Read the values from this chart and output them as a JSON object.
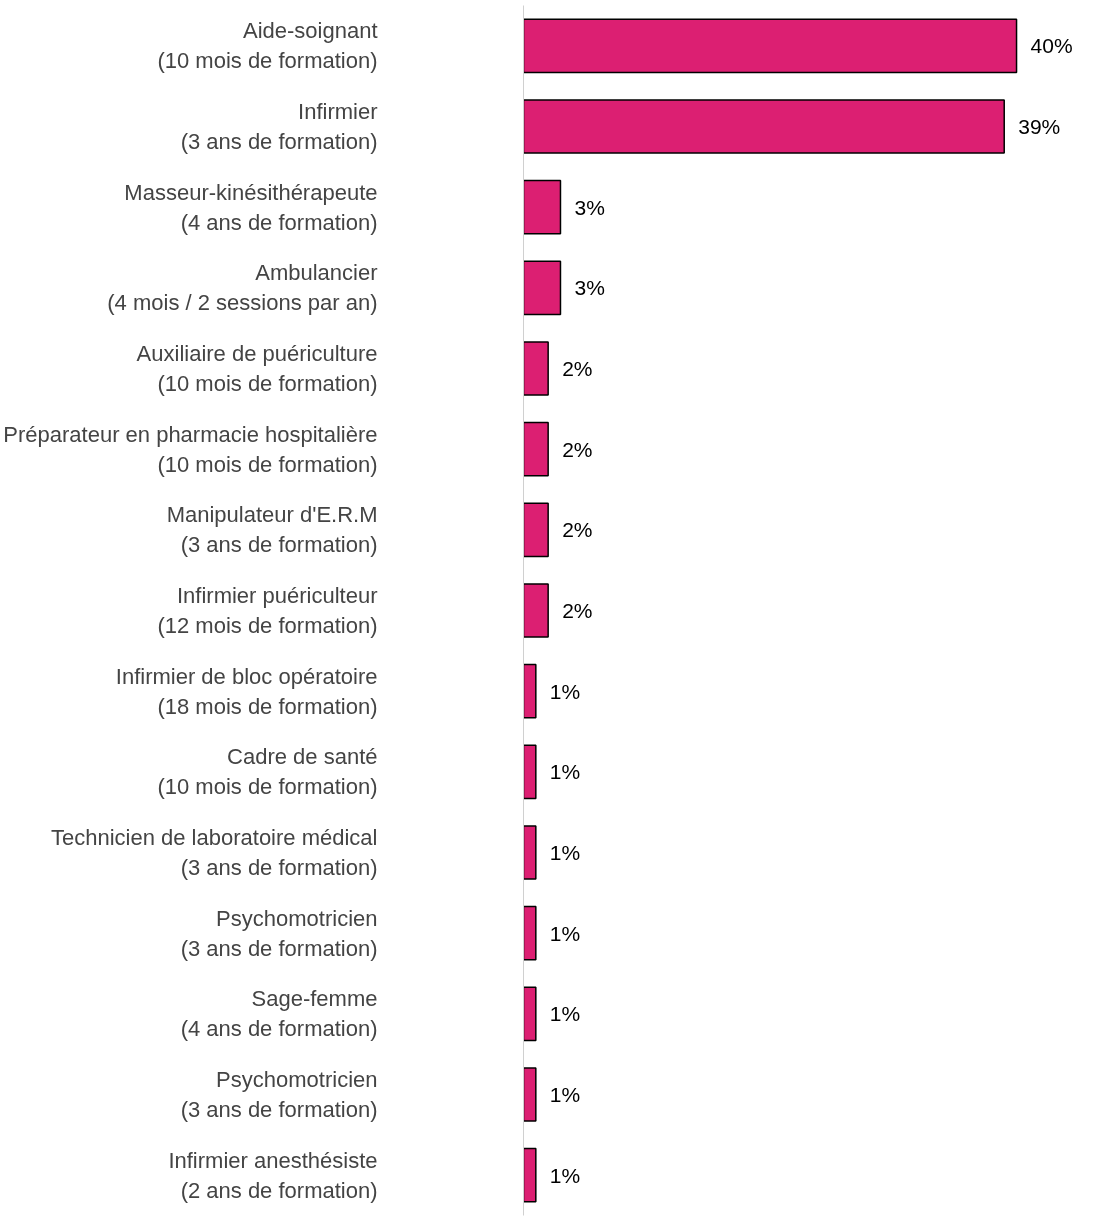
{
  "chart_data": {
    "type": "bar",
    "orientation": "horizontal",
    "color": "#dc1f72",
    "categories": [
      "Aide-soignant\n(10 mois de formation)",
      "Infirmier\n(3 ans de formation)",
      "Masseur-kinésithérapeute\n(4 ans de formation)",
      "Ambulancier\n(4 mois / 2 sessions par an)",
      "Auxiliaire de puériculture\n(10 mois de formation)",
      "Préparateur en pharmacie hospitalière\n(10 mois de formation)",
      "Manipulateur d'E.R.M\n(3 ans de formation)",
      "Infirmier puériculteur\n(12 mois de formation)",
      "Infirmier de bloc opératoire\n(18 mois de formation)",
      "Cadre de santé\n(10 mois de formation)",
      "Technicien de laboratoire médical\n(3 ans de formation)",
      "Psychomotricien\n(3 ans de formation)",
      "Sage-femme\n(4 ans de formation)",
      "Psychomotricien\n(3 ans de formation)",
      "Infirmier anesthésiste\n(2 ans de formation)"
    ],
    "values": [
      40,
      39,
      3,
      3,
      2,
      2,
      2,
      2,
      1,
      1,
      1,
      1,
      1,
      1,
      1
    ],
    "value_labels": [
      "40%",
      "39%",
      "3%",
      "3%",
      "2%",
      "2%",
      "2%",
      "2%",
      "1%",
      "1%",
      "1%",
      "1%",
      "1%",
      "1%",
      "1%"
    ]
  }
}
